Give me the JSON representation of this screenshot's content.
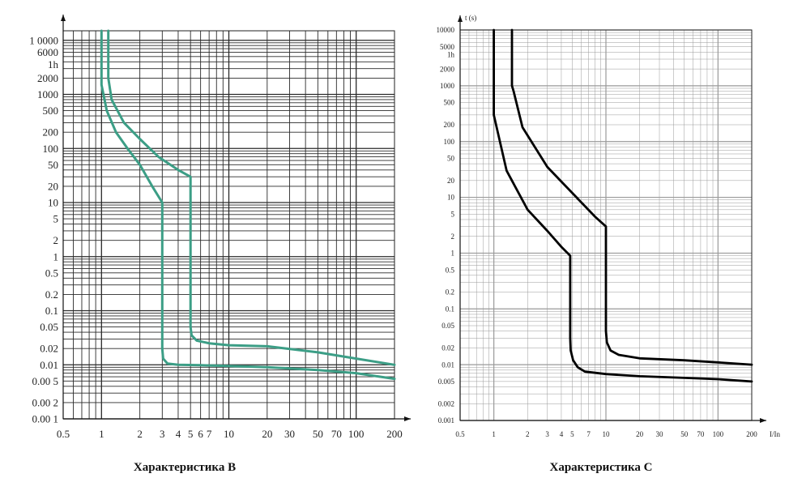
{
  "chart_data": [
    {
      "type": "line",
      "title": "Характеристика B",
      "xlabel": "",
      "ylabel": "",
      "xscale": "log",
      "yscale": "log",
      "xlim": [
        0.5,
        200
      ],
      "ylim": [
        0.001,
        15000
      ],
      "grid": true,
      "line_color": "#3c9e86",
      "x_tick_labels": [
        "0.5",
        "1",
        "2",
        "3",
        "4",
        "5",
        "6",
        "7",
        "10",
        "20",
        "30",
        "50",
        "70",
        "100",
        "200"
      ],
      "x_tick_values": [
        0.5,
        1,
        2,
        3,
        4,
        5,
        6,
        7,
        10,
        20,
        30,
        50,
        70,
        100,
        200
      ],
      "y_tick_labels": [
        "1 0000",
        "6000",
        "1h",
        "2000",
        "1000",
        "500",
        "200",
        "100",
        "50",
        "20",
        "10",
        "5",
        "2",
        "1",
        "0.5",
        "0.2",
        "0.1",
        "0.05",
        "0.02",
        "0.01",
        "0.00 5",
        "0.00 2",
        "0.00 1"
      ],
      "y_tick_values": [
        10000,
        6000,
        3600,
        2000,
        1000,
        500,
        200,
        100,
        50,
        20,
        10,
        5,
        2,
        1,
        0.5,
        0.2,
        0.1,
        0.05,
        0.02,
        0.01,
        0.005,
        0.002,
        0.001
      ],
      "series": [
        {
          "x": [
            1.0,
            1.0,
            1.1,
            1.3,
            1.6,
            2.0,
            2.5,
            3.0,
            3.0,
            3.0,
            3.0,
            3.05,
            3.3,
            4,
            6,
            10,
            20,
            50,
            100,
            200
          ],
          "y": [
            15000,
            1500,
            500,
            200,
            100,
            50,
            20,
            10,
            2,
            0.2,
            0.02,
            0.013,
            0.0105,
            0.01,
            0.0098,
            0.0095,
            0.009,
            0.008,
            0.007,
            0.0055
          ]
        },
        {
          "x": [
            1.13,
            1.13,
            1.2,
            1.5,
            2.0,
            2.8,
            4.0,
            5.0,
            5.0,
            5.0,
            5.0,
            5.1,
            5.6,
            7,
            10,
            20,
            50,
            100,
            200
          ],
          "y": [
            15000,
            2000,
            800,
            300,
            150,
            70,
            40,
            30,
            3,
            0.3,
            0.05,
            0.035,
            0.028,
            0.025,
            0.023,
            0.022,
            0.017,
            0.013,
            0.01
          ]
        }
      ]
    },
    {
      "type": "line",
      "title": "Характеристика C",
      "xlabel": "I/In",
      "ylabel": "t (s)",
      "xscale": "log",
      "yscale": "log",
      "xlim": [
        0.5,
        200
      ],
      "ylim": [
        0.001,
        10000
      ],
      "grid": true,
      "line_color": "#000000",
      "x_tick_labels": [
        "0.5",
        "1",
        "2",
        "3",
        "4",
        "5",
        "7",
        "10",
        "20",
        "30",
        "50",
        "70",
        "100",
        "200"
      ],
      "x_tick_values": [
        0.5,
        1,
        2,
        3,
        4,
        5,
        7,
        10,
        20,
        30,
        50,
        70,
        100,
        200
      ],
      "y_tick_labels": [
        "10000",
        "5000",
        "1h",
        "2000",
        "1000",
        "500",
        "200",
        "100",
        "50",
        "20",
        "10",
        "5",
        "2",
        "1",
        "0.5",
        "0.2",
        "0.1",
        "0.05",
        "0.02",
        "0.01",
        "0.005",
        "0.002",
        "0.001"
      ],
      "y_tick_values": [
        10000,
        5000,
        3600,
        2000,
        1000,
        500,
        200,
        100,
        50,
        20,
        10,
        5,
        2,
        1,
        0.5,
        0.2,
        0.1,
        0.05,
        0.02,
        0.01,
        0.005,
        0.002,
        0.001
      ],
      "series": [
        {
          "x": [
            1.0,
            1.0,
            1.0,
            1.3,
            2.0,
            3.0,
            4.0,
            4.8,
            4.8,
            4.8,
            4.85,
            5.1,
            5.6,
            6.5,
            10,
            20,
            50,
            100,
            200
          ],
          "y": [
            10000,
            1000,
            300,
            30,
            6,
            2.5,
            1.3,
            0.9,
            0.2,
            0.03,
            0.018,
            0.012,
            0.009,
            0.0075,
            0.0068,
            0.0062,
            0.0058,
            0.0055,
            0.005
          ]
        },
        {
          "x": [
            1.45,
            1.45,
            1.5,
            1.8,
            3.0,
            5.0,
            8.0,
            10.0,
            10.0,
            10.0,
            10.0,
            10.2,
            11,
            13,
            20,
            50,
            100,
            200
          ],
          "y": [
            10000,
            1000,
            800,
            180,
            35,
            12,
            4.5,
            3,
            0.8,
            0.1,
            0.04,
            0.025,
            0.018,
            0.015,
            0.013,
            0.012,
            0.011,
            0.01
          ]
        }
      ]
    }
  ]
}
